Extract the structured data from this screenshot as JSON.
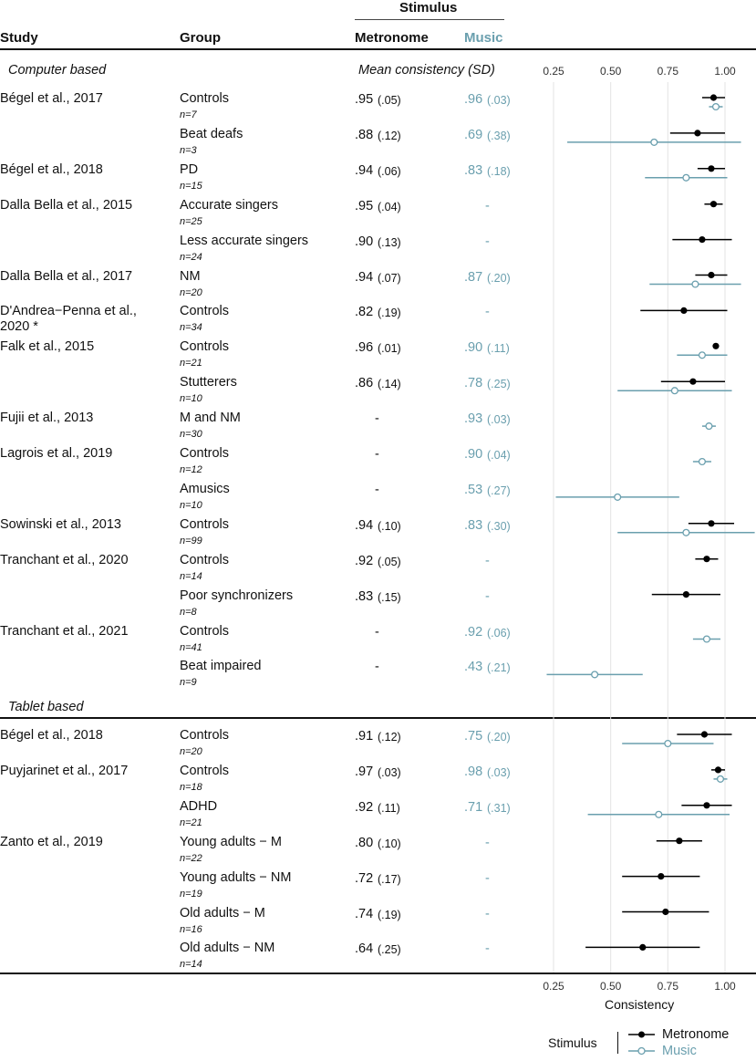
{
  "header": {
    "stimulus": "Stimulus",
    "study": "Study",
    "group": "Group",
    "metronome": "Metronome",
    "music": "Music",
    "mean_consistency": "Mean consistency (SD)"
  },
  "colors": {
    "metronome": "#000000",
    "music": "#6a9fae",
    "grid": "#e3e3e3"
  },
  "sections": [
    {
      "label": "Computer based"
    },
    {
      "label": "Tablet based"
    }
  ],
  "rows": [
    {
      "study": "Bégel et al., 2017",
      "group": "Controls",
      "n": "n=7",
      "met": ".95",
      "met_sd": "(.05)",
      "mus": ".96",
      "mus_sd": "(.03)"
    },
    {
      "study": "",
      "group": "Beat deafs",
      "n": "n=3",
      "met": ".88",
      "met_sd": "(.12)",
      "mus": ".69",
      "mus_sd": "(.38)"
    },
    {
      "study": "Bégel et al., 2018",
      "group": "PD",
      "n": "n=15",
      "met": ".94",
      "met_sd": "(.06)",
      "mus": ".83",
      "mus_sd": "(.18)"
    },
    {
      "study": "Dalla Bella et al., 2015",
      "group": "Accurate singers",
      "n": "n=25",
      "met": ".95",
      "met_sd": "(.04)",
      "mus": "-",
      "mus_sd": ""
    },
    {
      "study": "",
      "group": "Less accurate singers",
      "n": "n=24",
      "met": ".90",
      "met_sd": "(.13)",
      "mus": "-",
      "mus_sd": ""
    },
    {
      "study": "Dalla Bella et al., 2017",
      "group": "NM",
      "n": "n=20",
      "met": ".94",
      "met_sd": "(.07)",
      "mus": ".87",
      "mus_sd": "(.20)"
    },
    {
      "study": "D'Andrea−Penna et al.,",
      "study2": "2020 *",
      "group": "Controls",
      "n": "n=34",
      "met": ".82",
      "met_sd": "(.19)",
      "mus": "-",
      "mus_sd": ""
    },
    {
      "study": "Falk et al., 2015",
      "group": "Controls",
      "n": "n=21",
      "met": ".96",
      "met_sd": "(.01)",
      "mus": ".90",
      "mus_sd": "(.11)"
    },
    {
      "study": "",
      "group": "Stutterers",
      "n": "n=10",
      "met": ".86",
      "met_sd": "(.14)",
      "mus": ".78",
      "mus_sd": "(.25)"
    },
    {
      "study": "Fujii et al., 2013",
      "group": "M and NM",
      "n": "n=30",
      "met": "-",
      "met_sd": "",
      "mus": ".93",
      "mus_sd": "(.03)"
    },
    {
      "study": "Lagrois et al., 2019",
      "group": "Controls",
      "n": "n=12",
      "met": "-",
      "met_sd": "",
      "mus": ".90",
      "mus_sd": "(.04)"
    },
    {
      "study": "",
      "group": "Amusics",
      "n": "n=10",
      "met": "-",
      "met_sd": "",
      "mus": ".53",
      "mus_sd": "(.27)"
    },
    {
      "study": "Sowinski et al., 2013",
      "group": "Controls",
      "n": "n=99",
      "met": ".94",
      "met_sd": "(.10)",
      "mus": ".83",
      "mus_sd": "(.30)"
    },
    {
      "study": "Tranchant et al., 2020",
      "group": "Controls",
      "n": "n=14",
      "met": ".92",
      "met_sd": "(.05)",
      "mus": "-",
      "mus_sd": ""
    },
    {
      "study": "",
      "group": "Poor synchronizers",
      "n": "n=8",
      "met": ".83",
      "met_sd": "(.15)",
      "mus": "-",
      "mus_sd": ""
    },
    {
      "study": "Tranchant et al., 2021",
      "group": "Controls",
      "n": "n=41",
      "met": "-",
      "met_sd": "",
      "mus": ".92",
      "mus_sd": "(.06)"
    },
    {
      "study": "",
      "group": "Beat impaired",
      "n": "n=9",
      "met": "-",
      "met_sd": "",
      "mus": ".43",
      "mus_sd": "(.21)"
    },
    {
      "study": "Bégel et al., 2018",
      "group": "Controls",
      "n": "n=20",
      "met": ".91",
      "met_sd": "(.12)",
      "mus": ".75",
      "mus_sd": "(.20)"
    },
    {
      "study": "Puyjarinet et al., 2017",
      "group": "Controls",
      "n": "n=18",
      "met": ".97",
      "met_sd": "(.03)",
      "mus": ".98",
      "mus_sd": "(.03)"
    },
    {
      "study": "",
      "group": "ADHD",
      "n": "n=21",
      "met": ".92",
      "met_sd": "(.11)",
      "mus": ".71",
      "mus_sd": "(.31)"
    },
    {
      "study": "Zanto et al., 2019",
      "group": "Young adults − M",
      "n": "n=22",
      "met": ".80",
      "met_sd": "(.10)",
      "mus": "-",
      "mus_sd": ""
    },
    {
      "study": "",
      "group": "Young adults − NM",
      "n": "n=19",
      "met": ".72",
      "met_sd": "(.17)",
      "mus": "-",
      "mus_sd": ""
    },
    {
      "study": "",
      "group": "Old adults − M",
      "n": "n=16",
      "met": ".74",
      "met_sd": "(.19)",
      "mus": "-",
      "mus_sd": ""
    },
    {
      "study": "",
      "group": "Old adults − NM",
      "n": "n=14",
      "met": ".64",
      "met_sd": "(.25)",
      "mus": "-",
      "mus_sd": ""
    }
  ],
  "chart_data": {
    "type": "scatter",
    "subtype": "forest-plot",
    "xlabel": "Consistency",
    "xlim": [
      0.25,
      1.0
    ],
    "xticks": [
      "0.25",
      "0.50",
      "0.75",
      "1.00"
    ],
    "xtick_values": [
      0.25,
      0.5,
      0.75,
      1.0
    ],
    "legend": {
      "title": "Stimulus",
      "entries": [
        "Metronome",
        "Music"
      ],
      "position": "bottom-right"
    },
    "series": [
      {
        "name": "Metronome",
        "values": [
          {
            "row": 0,
            "mean": 0.95,
            "sd": 0.05
          },
          {
            "row": 1,
            "mean": 0.88,
            "sd": 0.12
          },
          {
            "row": 2,
            "mean": 0.94,
            "sd": 0.06
          },
          {
            "row": 3,
            "mean": 0.95,
            "sd": 0.04
          },
          {
            "row": 4,
            "mean": 0.9,
            "sd": 0.13
          },
          {
            "row": 5,
            "mean": 0.94,
            "sd": 0.07
          },
          {
            "row": 6,
            "mean": 0.82,
            "sd": 0.19
          },
          {
            "row": 7,
            "mean": 0.96,
            "sd": 0.01
          },
          {
            "row": 8,
            "mean": 0.86,
            "sd": 0.14
          },
          {
            "row": 12,
            "mean": 0.94,
            "sd": 0.1
          },
          {
            "row": 13,
            "mean": 0.92,
            "sd": 0.05
          },
          {
            "row": 14,
            "mean": 0.83,
            "sd": 0.15
          },
          {
            "row": 17,
            "mean": 0.91,
            "sd": 0.12
          },
          {
            "row": 18,
            "mean": 0.97,
            "sd": 0.03
          },
          {
            "row": 19,
            "mean": 0.92,
            "sd": 0.11
          },
          {
            "row": 20,
            "mean": 0.8,
            "sd": 0.1
          },
          {
            "row": 21,
            "mean": 0.72,
            "sd": 0.17
          },
          {
            "row": 22,
            "mean": 0.74,
            "sd": 0.19
          },
          {
            "row": 23,
            "mean": 0.64,
            "sd": 0.25
          }
        ]
      },
      {
        "name": "Music",
        "values": [
          {
            "row": 0,
            "mean": 0.96,
            "sd": 0.03
          },
          {
            "row": 1,
            "mean": 0.69,
            "sd": 0.38
          },
          {
            "row": 2,
            "mean": 0.83,
            "sd": 0.18
          },
          {
            "row": 5,
            "mean": 0.87,
            "sd": 0.2
          },
          {
            "row": 7,
            "mean": 0.9,
            "sd": 0.11
          },
          {
            "row": 8,
            "mean": 0.78,
            "sd": 0.25
          },
          {
            "row": 9,
            "mean": 0.93,
            "sd": 0.03
          },
          {
            "row": 10,
            "mean": 0.9,
            "sd": 0.04
          },
          {
            "row": 11,
            "mean": 0.53,
            "sd": 0.27
          },
          {
            "row": 12,
            "mean": 0.83,
            "sd": 0.3
          },
          {
            "row": 15,
            "mean": 0.92,
            "sd": 0.06
          },
          {
            "row": 16,
            "mean": 0.43,
            "sd": 0.21
          },
          {
            "row": 17,
            "mean": 0.75,
            "sd": 0.2
          },
          {
            "row": 18,
            "mean": 0.98,
            "sd": 0.03
          },
          {
            "row": 19,
            "mean": 0.71,
            "sd": 0.31
          }
        ]
      }
    ]
  }
}
